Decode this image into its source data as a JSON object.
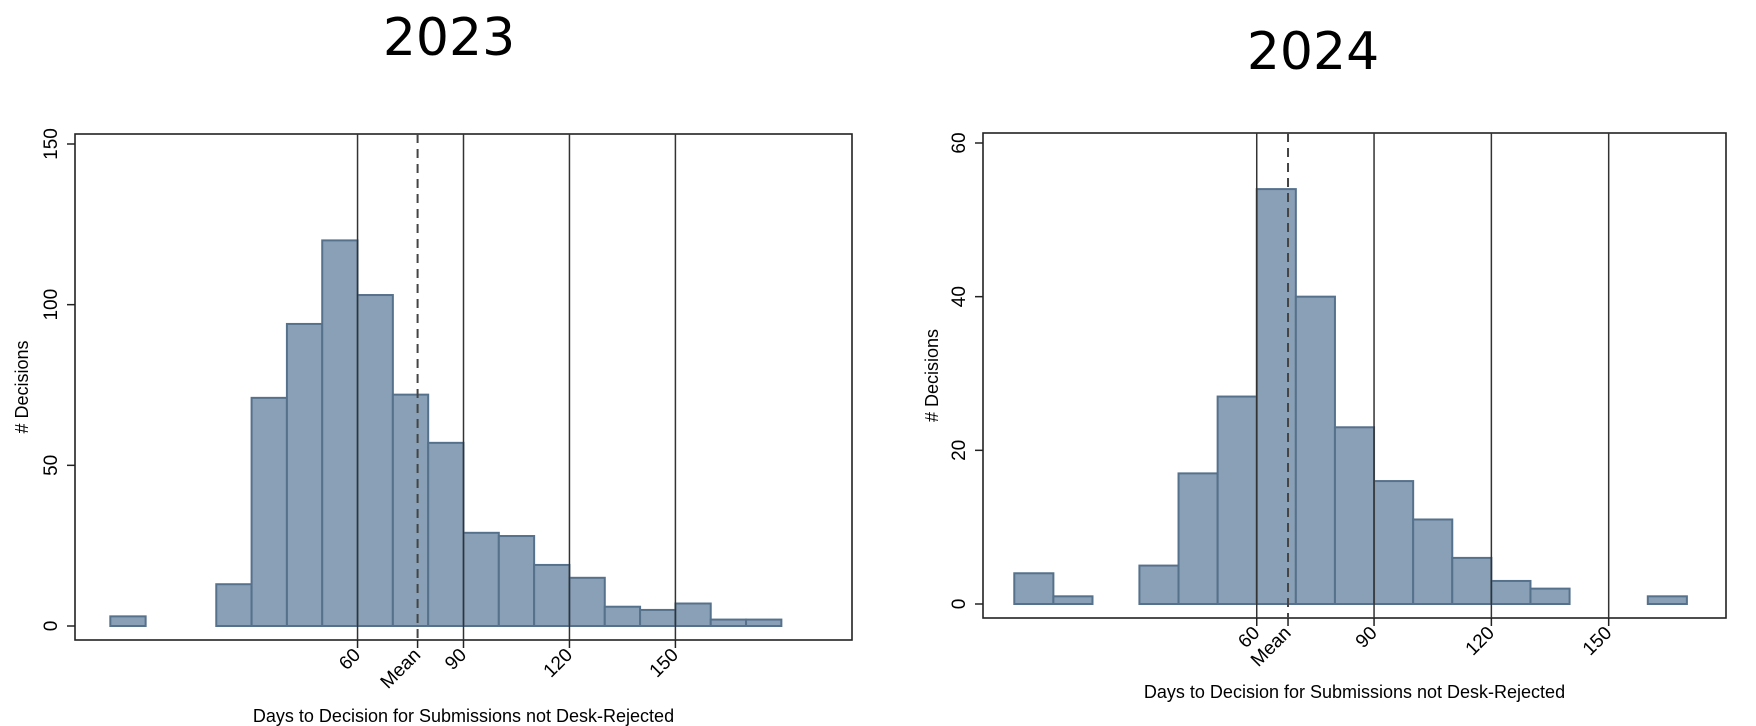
{
  "chart_data": [
    {
      "type": "bar",
      "title": "2023",
      "xlabel": "Days to Decision for Submissions not Desk-Rejected",
      "ylabel": "# Decisions",
      "ylim": [
        0,
        150
      ],
      "yticks": [
        0,
        50,
        100,
        150
      ],
      "xlim": [
        -20,
        200
      ],
      "xticks": [
        {
          "value": 60,
          "label": "60"
        },
        {
          "value": 77,
          "label": "Mean"
        },
        {
          "value": 90,
          "label": "90"
        },
        {
          "value": 120,
          "label": "120"
        },
        {
          "value": 150,
          "label": "150"
        }
      ],
      "reference_lines": [
        60,
        90,
        120,
        150
      ],
      "mean_line": 77,
      "bin_width": 10,
      "bins": [
        {
          "x0": -10,
          "count": 3
        },
        {
          "x0": 20,
          "count": 13
        },
        {
          "x0": 30,
          "count": 71
        },
        {
          "x0": 40,
          "count": 94
        },
        {
          "x0": 50,
          "count": 120
        },
        {
          "x0": 60,
          "count": 103
        },
        {
          "x0": 70,
          "count": 72
        },
        {
          "x0": 80,
          "count": 57
        },
        {
          "x0": 90,
          "count": 29
        },
        {
          "x0": 100,
          "count": 28
        },
        {
          "x0": 110,
          "count": 19
        },
        {
          "x0": 120,
          "count": 15
        },
        {
          "x0": 130,
          "count": 6
        },
        {
          "x0": 140,
          "count": 5
        },
        {
          "x0": 150,
          "count": 7
        },
        {
          "x0": 160,
          "count": 2
        },
        {
          "x0": 170,
          "count": 2
        }
      ],
      "grid": false
    },
    {
      "type": "bar",
      "title": "2024",
      "xlabel": "Days to Decision for Submissions not Desk-Rejected",
      "ylabel": "# Decisions",
      "ylim": [
        0,
        60
      ],
      "yticks": [
        0,
        20,
        40,
        60
      ],
      "xlim": [
        -10,
        180
      ],
      "xticks": [
        {
          "value": 60,
          "label": "60"
        },
        {
          "value": 68,
          "label": "Mean"
        },
        {
          "value": 90,
          "label": "90"
        },
        {
          "value": 120,
          "label": "120"
        },
        {
          "value": 150,
          "label": "150"
        }
      ],
      "reference_lines": [
        60,
        90,
        120,
        150
      ],
      "mean_line": 68,
      "bin_width": 10,
      "bins": [
        {
          "x0": -2,
          "count": 4
        },
        {
          "x0": 8,
          "count": 1
        },
        {
          "x0": 30,
          "count": 5
        },
        {
          "x0": 40,
          "count": 17
        },
        {
          "x0": 50,
          "count": 27
        },
        {
          "x0": 60,
          "count": 54
        },
        {
          "x0": 70,
          "count": 40
        },
        {
          "x0": 80,
          "count": 23
        },
        {
          "x0": 90,
          "count": 16
        },
        {
          "x0": 100,
          "count": 11
        },
        {
          "x0": 110,
          "count": 6
        },
        {
          "x0": 120,
          "count": 3
        },
        {
          "x0": 130,
          "count": 2
        },
        {
          "x0": 160,
          "count": 1
        }
      ],
      "grid": false
    }
  ]
}
